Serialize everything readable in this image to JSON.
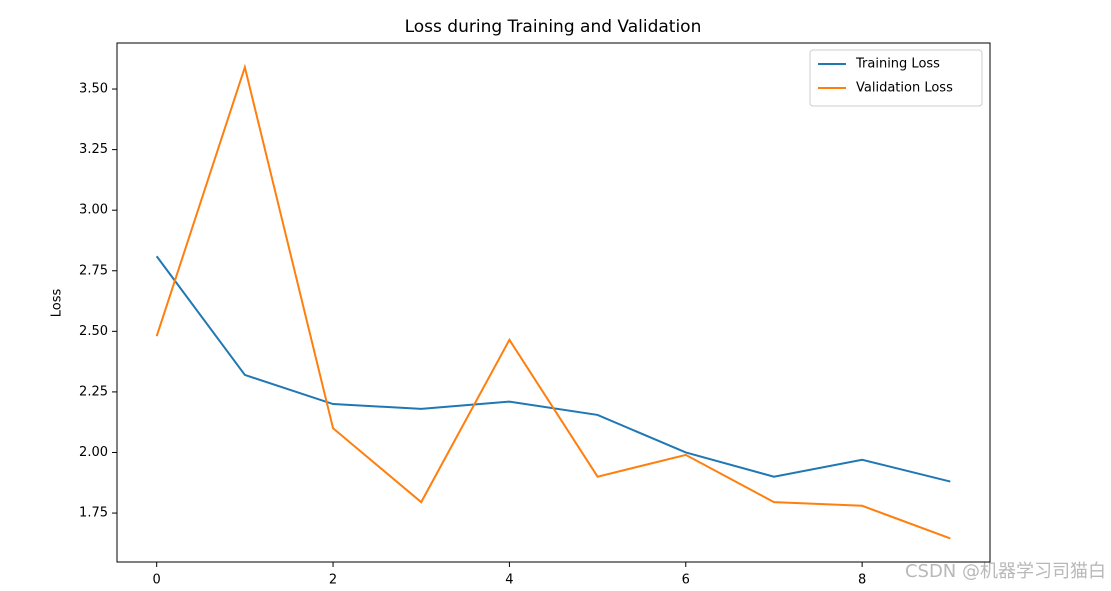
{
  "chart_data": {
    "type": "line",
    "title": "Loss during Training and Validation",
    "ylabel": "Loss",
    "x": [
      0,
      1,
      2,
      3,
      4,
      5,
      6,
      7,
      8,
      9
    ],
    "series": [
      {
        "name": "Training Loss",
        "color": "#1f77b4",
        "values": [
          2.81,
          2.32,
          2.2,
          2.18,
          2.21,
          2.155,
          2.0,
          1.9,
          1.97,
          1.88
        ]
      },
      {
        "name": "Validation Loss",
        "color": "#ff7f0e",
        "values": [
          2.48,
          3.59,
          2.1,
          1.795,
          2.465,
          1.9,
          1.99,
          1.795,
          1.78,
          1.645
        ]
      }
    ],
    "xlim": [
      -0.45,
      9.45
    ],
    "xticks": [
      0,
      2,
      4,
      6,
      8
    ],
    "ylim": [
      1.548,
      3.69
    ],
    "yticks": [
      1.75,
      {
        "value": 2.0,
        "label": "2.00"
      },
      2.25,
      {
        "value": 2.5,
        "label": "2.50"
      },
      2.75,
      {
        "value": 3.0,
        "label": "3.00"
      },
      3.25,
      {
        "value": 3.5,
        "label": "3.50"
      }
    ],
    "legend": "upper right",
    "grid": false
  },
  "watermark": "CSDN @机器学习司猫白"
}
